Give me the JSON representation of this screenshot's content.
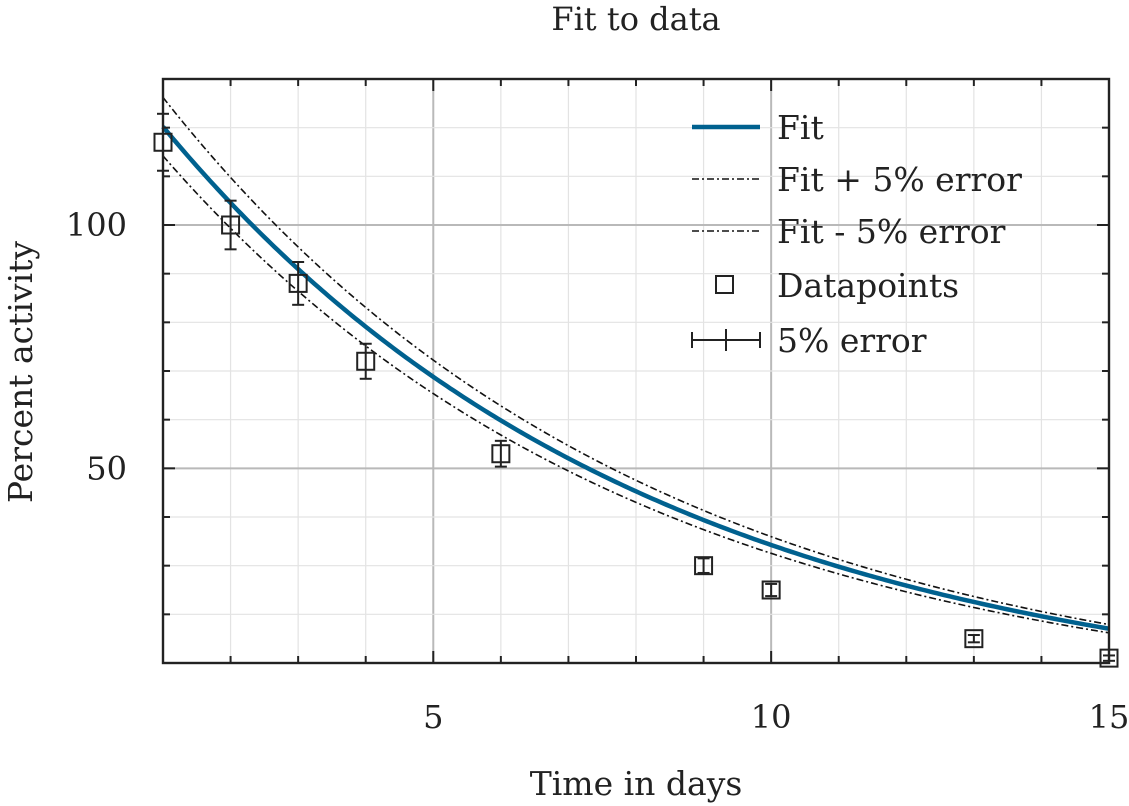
{
  "chart_data": {
    "type": "line",
    "title": "Fit to data",
    "xlabel": "Time in days",
    "ylabel": "Percent activity",
    "xlim": [
      1,
      15
    ],
    "ylim": [
      10,
      130
    ],
    "xticks": [
      5,
      10,
      15
    ],
    "yticks": [
      50,
      100
    ],
    "grid": true,
    "legend_position": "top-right",
    "fit": {
      "name": "Fit",
      "amplitude": 138.2,
      "rate": 0.1395,
      "color": "#00618f"
    },
    "fit_plus": {
      "name": "Fit + 5% error",
      "factor": 1.05
    },
    "fit_minus": {
      "name": "Fit - 5% error",
      "factor": 0.95
    },
    "datapoints": {
      "name": "Datapoints",
      "x": [
        1,
        2,
        3,
        4,
        6,
        9,
        10,
        13,
        15
      ],
      "y": [
        117,
        100,
        88,
        72,
        53,
        30,
        25,
        15,
        11
      ]
    },
    "error": {
      "name": "5% error",
      "fraction": 0.05
    }
  }
}
